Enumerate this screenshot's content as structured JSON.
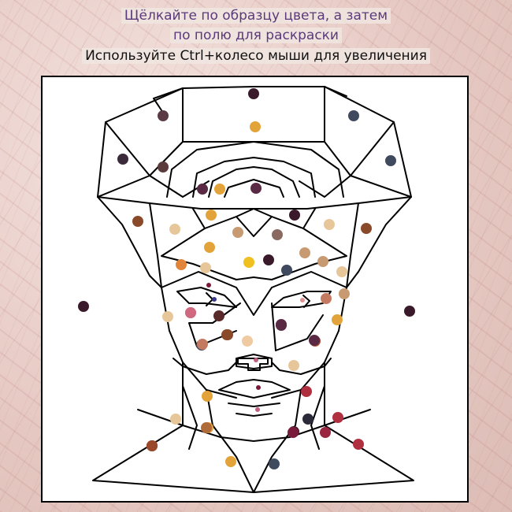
{
  "instructions": {
    "line1": "Щёлкайте по образцу цвета, а затем",
    "line2": "по полю для раскраски",
    "line3": "Используйте Ctrl+колесо мыши для увеличения"
  },
  "palette": {
    "dark_plum": "#3a1a2a",
    "plum": "#5a2a44",
    "slate": "#3f4a5e",
    "brown_dark": "#5a3a3a",
    "rust": "#8a4a2a",
    "gold": "#e2a33a",
    "tan": "#c79a72",
    "sand": "#e7c79a",
    "peach": "#f0caa0",
    "salmon": "#c47a60",
    "rose": "#d06880",
    "red": "#b03040",
    "crimson": "#9a2540",
    "mauve": "#8a6a60",
    "orange": "#e0853a",
    "yellow": "#f0c020"
  },
  "swatch_colors": [
    "#3a1a2a",
    "#5a3a44",
    "#e2a33a",
    "#3f4a5e",
    "#3a2a3a",
    "#5a3a3a",
    "#3f4a5e",
    "#5a2a44",
    "#e2a33a",
    "#5a2a44",
    "#8a4a2a",
    "#e7c79a",
    "#e2a33a",
    "#c79a72",
    "#3a1a2a",
    "#8a6a60",
    "#e7c79a",
    "#8a4a2a",
    "#e2a33a",
    "#c79a72",
    "#e0853a",
    "#e7c79a",
    "#f0c020",
    "#3a1a2a",
    "#c79a72",
    "#3f4a5e",
    "#e7c79a",
    "#c79a72",
    "#3a1a2a",
    "#3a1a2a",
    "#e7c79a",
    "#d06880",
    "#5a2a2a",
    "#8a4a2a",
    "#3f4a5e",
    "#f0caa0",
    "#5a2a44",
    "#e2a33a",
    "#c47a60",
    "#b0503a",
    "#e7c79a",
    "#5a2a44",
    "#c47a60",
    "#d06880",
    "#8a4a2a",
    "#5a2a44",
    "#e2a33a",
    "#e7c79a",
    "#e2a33a",
    "#b03040",
    "#e2a33a",
    "#8a4a2a",
    "#3f4a5e",
    "#3a1a2a",
    "#9a2540",
    "#7a1a3a",
    "#b03040",
    "#b03040",
    "#8a4a2a",
    "#b06a3a",
    "#2a2a3a",
    "#9a4a2a"
  ],
  "markers": [
    "#7a1a3a",
    "#3a3a8a",
    "#c06080",
    "#e09090",
    "#7a1a3a",
    "#c06080"
  ]
}
